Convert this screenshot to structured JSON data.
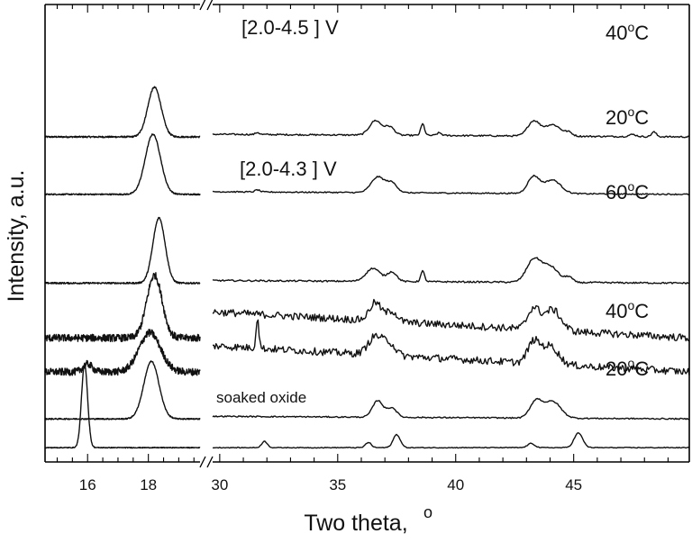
{
  "chart_data": {
    "type": "line",
    "title": "",
    "xlabel": "Two theta,",
    "xlabel_superscript": "o",
    "ylabel": "Intensity, a.u.",
    "grid": false,
    "broken_x_axis": true,
    "segments": [
      {
        "xlim": [
          14.6,
          19.7
        ],
        "ticks_major": [
          16,
          18
        ],
        "tick_labels": [
          "16",
          "18"
        ]
      },
      {
        "xlim": [
          29.7,
          49.9
        ],
        "ticks_major": [
          30,
          35,
          40,
          45
        ],
        "tick_labels": [
          "30",
          "35",
          "40",
          "45"
        ]
      }
    ],
    "annotations": [
      {
        "text": "[2.0-4.5 ] V",
        "near_series": "40C_4.5V"
      },
      {
        "text": "[2.0-4.3 ] V",
        "near_series": "60C_4.3V"
      },
      {
        "text": "soaked oxide",
        "near_series": "soaked"
      }
    ],
    "series_labels": [
      {
        "base": "40",
        "sup": "o",
        "unit": "C",
        "series": "40C_4.5V"
      },
      {
        "base": "20",
        "sup": "o",
        "unit": "C",
        "series": "20C_4.5V"
      },
      {
        "base": "60",
        "sup": "o",
        "unit": "C",
        "series": "60C_4.3V"
      },
      {
        "base": "40",
        "sup": "o",
        "unit": "C",
        "series": "40C_4.3V"
      },
      {
        "base": "20",
        "sup": "o",
        "unit": "C",
        "series": "20C_4.3V"
      }
    ],
    "series": [
      {
        "id": "40C_4.5V",
        "offset": 6.0,
        "noise": 0.015,
        "slope": 0.05,
        "peaks": [
          [
            18.2,
            0.95,
            0.22
          ],
          [
            31.6,
            0.04,
            0.08
          ],
          [
            36.6,
            0.28,
            0.25
          ],
          [
            37.2,
            0.16,
            0.2
          ],
          [
            38.6,
            0.22,
            0.08
          ],
          [
            39.3,
            0.05,
            0.1
          ],
          [
            43.3,
            0.28,
            0.25
          ],
          [
            44.1,
            0.22,
            0.35
          ],
          [
            44.8,
            0.06,
            0.15
          ],
          [
            47.5,
            0.04,
            0.15
          ],
          [
            48.4,
            0.09,
            0.1
          ]
        ]
      },
      {
        "id": "20C_4.5V",
        "offset": 4.9,
        "noise": 0.012,
        "slope": 0.05,
        "peaks": [
          [
            18.15,
            1.15,
            0.25
          ],
          [
            31.6,
            0.04,
            0.1
          ],
          [
            36.7,
            0.3,
            0.28
          ],
          [
            37.3,
            0.18,
            0.22
          ],
          [
            43.3,
            0.32,
            0.25
          ],
          [
            44.1,
            0.26,
            0.35
          ]
        ]
      },
      {
        "id": "60C_4.3V",
        "offset": 3.2,
        "noise": 0.015,
        "slope": 0.05,
        "peaks": [
          [
            18.35,
            1.25,
            0.2
          ],
          [
            36.5,
            0.25,
            0.3
          ],
          [
            37.3,
            0.18,
            0.2
          ],
          [
            38.6,
            0.2,
            0.08
          ],
          [
            43.3,
            0.42,
            0.3
          ],
          [
            44.0,
            0.3,
            0.35
          ],
          [
            44.8,
            0.1,
            0.15
          ]
        ]
      },
      {
        "id": "40C_4.3V",
        "offset": 2.15,
        "noise": 0.07,
        "slope": 0.5,
        "peaks": [
          [
            18.2,
            1.2,
            0.25
          ],
          [
            36.6,
            0.35,
            0.25
          ],
          [
            37.3,
            0.2,
            0.22
          ],
          [
            43.3,
            0.4,
            0.25
          ],
          [
            44.1,
            0.4,
            0.35
          ]
        ]
      },
      {
        "id": "20C_4.3V",
        "offset": 1.5,
        "noise": 0.07,
        "slope": 0.5,
        "peaks": [
          [
            16.0,
            0.15,
            0.15
          ],
          [
            18.05,
            0.75,
            0.35
          ],
          [
            31.6,
            0.6,
            0.06
          ],
          [
            36.6,
            0.35,
            0.3
          ],
          [
            37.2,
            0.22,
            0.25
          ],
          [
            43.3,
            0.4,
            0.25
          ],
          [
            44.0,
            0.35,
            0.35
          ]
        ]
      },
      {
        "id": "soaked",
        "offset": 0.6,
        "noise": 0.012,
        "slope": 0.05,
        "peaks": [
          [
            18.1,
            1.1,
            0.25
          ],
          [
            36.7,
            0.32,
            0.22
          ],
          [
            37.3,
            0.18,
            0.2
          ],
          [
            43.4,
            0.32,
            0.25
          ],
          [
            44.1,
            0.32,
            0.35
          ]
        ]
      },
      {
        "id": "pristine",
        "offset": 0.05,
        "noise": 0.008,
        "slope": 0.0,
        "peaks": [
          [
            15.9,
            1.6,
            0.1
          ],
          [
            31.9,
            0.12,
            0.12
          ],
          [
            36.3,
            0.1,
            0.12
          ],
          [
            37.5,
            0.25,
            0.15
          ],
          [
            43.2,
            0.08,
            0.15
          ],
          [
            45.2,
            0.28,
            0.18
          ]
        ]
      }
    ]
  }
}
